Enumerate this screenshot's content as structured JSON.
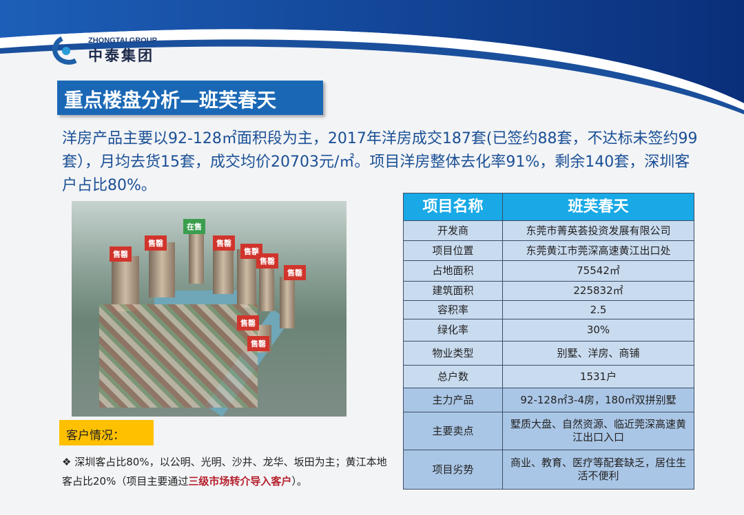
{
  "logo": {
    "en": "ZHONGTAI GROUP",
    "cn": "中泰集团"
  },
  "title": "重点楼盘分析—班芙春天",
  "intro": "洋房产品主要以92-128㎡面积段为主，2017年洋房成交187套(已签约88套，不达标未签约99套），月均去货15套，成交均价20703元/㎡。项目洋房整体去化率91%，剩余140套，深圳客户占比80%。",
  "photo_tags": [
    "售罄",
    "售罄",
    "在售",
    "售罄",
    "售罄",
    "售罄",
    "售罄",
    "售罄",
    "售罄"
  ],
  "customer": {
    "heading": "客户情况：",
    "bullet": "❖",
    "text1": "深圳客占比80%，以公明、光明、沙井、龙华、坂田为主；黄江本地客占比20%（项目主要通过",
    "highlight": "三级市场转介导入客户",
    "text2": "）。"
  },
  "table": {
    "header": [
      "项目名称",
      "班芙春天"
    ],
    "rows": [
      [
        "开发商",
        "东莞市菁英荟投资发展有限公司"
      ],
      [
        "项目位置",
        "东莞黄江市莞深高速黄江出口处"
      ],
      [
        "占地面积",
        "75542㎡"
      ],
      [
        "建筑面积",
        "225832㎡"
      ],
      [
        "容积率",
        "2.5"
      ],
      [
        "绿化率",
        "30%"
      ],
      [
        "物业类型",
        "别墅、洋房、商铺"
      ],
      [
        "总户数",
        "1531户"
      ],
      [
        "主力产品",
        "92-128㎡3-4房，180㎡双拼别墅"
      ],
      [
        "主要卖点",
        "墅质大盘、自然资源、临近莞深高速黄江出口入口"
      ],
      [
        "项目劣势",
        "商业、教育、医疗等配套缺乏，居住生活不便利"
      ]
    ]
  },
  "colors": {
    "title_bg": "#1a68b5",
    "intro": "#1a4f95",
    "table_header": "#18a9e6",
    "highlight": "#b5202c",
    "customer_tag": "#ffc000"
  }
}
